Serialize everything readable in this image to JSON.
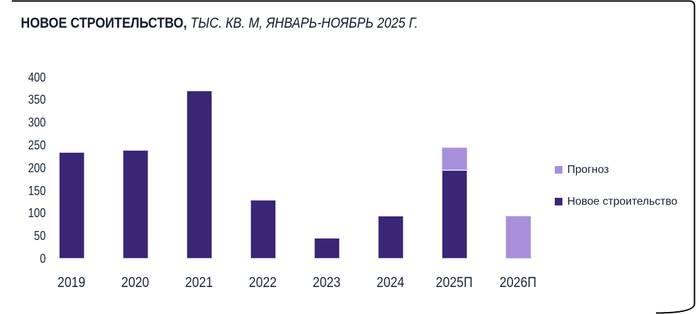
{
  "title": {
    "bold": "НОВОЕ СТРОИТЕЛЬСТВО,",
    "italic": " ТЫС. КВ. М, ЯНВАРЬ-НОЯБРЬ 2025 Г."
  },
  "legend": [
    {
      "label": "Прогноз",
      "color": "#a78fdb"
    },
    {
      "label": "Новое строительство",
      "color": "#3b2575"
    }
  ],
  "colors": {
    "bar_dark": "#3b2575",
    "bar_light": "#a78fdb",
    "bar_border": "#d6cdef",
    "text": "#17212f",
    "frame": "#000000"
  },
  "chart_data": {
    "type": "bar",
    "stacked": true,
    "title": "НОВОЕ СТРОИТЕЛЬСТВО, ТЫС. КВ. М, ЯНВАРЬ-НОЯБРЬ 2025 Г.",
    "categories": [
      "2019",
      "2020",
      "2021",
      "2022",
      "2023",
      "2024",
      "2025П",
      "2026П"
    ],
    "series": [
      {
        "name": "Новое строительство",
        "color": "#3b2575",
        "values": [
          235,
          240,
          370,
          130,
          45,
          95,
          195,
          0
        ]
      },
      {
        "name": "Прогноз",
        "color": "#a78fdb",
        "values": [
          0,
          0,
          0,
          0,
          0,
          0,
          50,
          95
        ]
      }
    ],
    "totals": [
      235,
      240,
      370,
      130,
      45,
      95,
      245,
      95
    ],
    "xlabel": "",
    "ylabel": "",
    "ylim": [
      0,
      400
    ],
    "ytick_step": 50,
    "yticks": [
      400,
      350,
      300,
      250,
      200,
      150,
      100,
      50,
      0
    ],
    "grid": false,
    "legend_position": "right"
  }
}
